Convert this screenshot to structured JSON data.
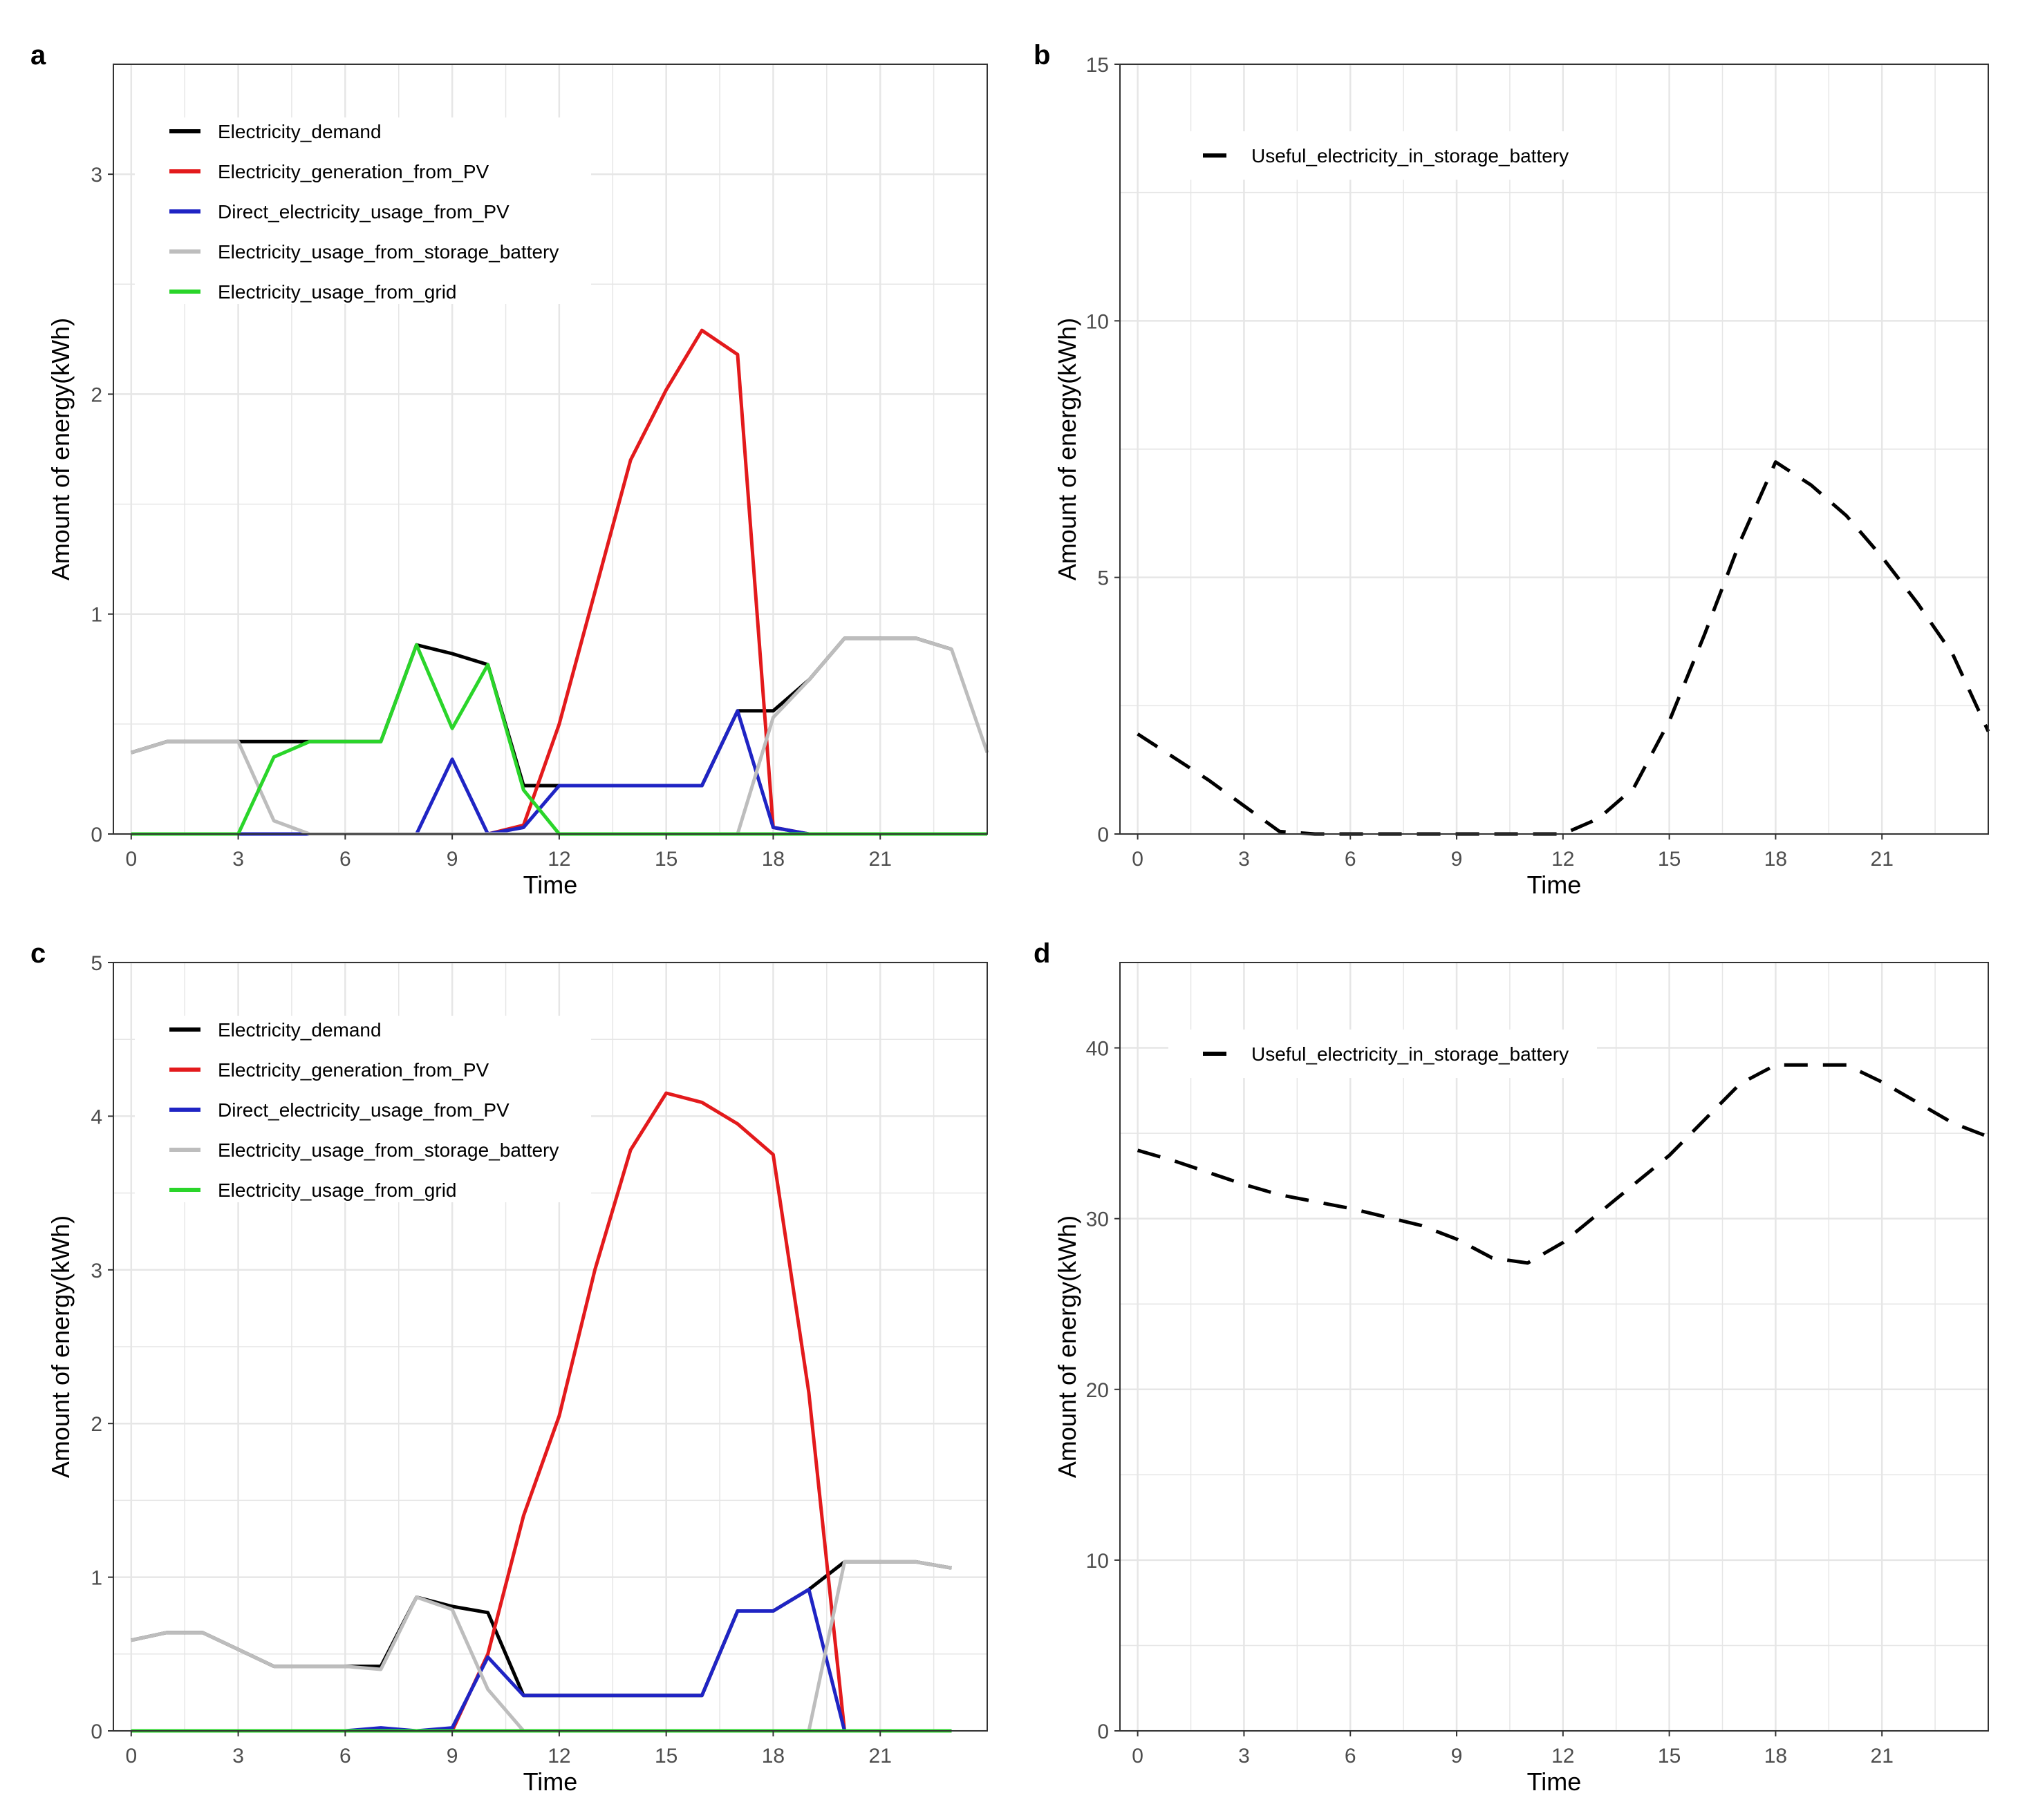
{
  "colors": {
    "demand": "#000000",
    "pv": "#e31a1c",
    "direct_pv": "#1f24c4",
    "battery": "#bdbdbd",
    "grid": "#2ad52a",
    "dashed": "#000000",
    "grid_lines": "#e6e6e6",
    "axis_text": "#4d4d4d"
  },
  "chart_data": [
    {
      "panel": "a",
      "type": "line",
      "xlabel": "Time",
      "ylabel": "Amount of energy(kWh)",
      "xlim": [
        -0.5,
        24.0
      ],
      "ylim": [
        0,
        3.5
      ],
      "xticks": [
        0,
        3,
        6,
        9,
        12,
        15,
        18,
        21
      ],
      "xtick_labels": [
        "0",
        "3",
        "6",
        "9",
        "12",
        "15",
        "18",
        "21"
      ],
      "yticks": [
        0,
        1,
        2,
        3
      ],
      "ytick_labels": [
        "0",
        "1",
        "2",
        "3"
      ],
      "legend_position": "top-left",
      "series": [
        {
          "name": "Electricity_demand",
          "color_key": "demand",
          "dash": false,
          "x": [
            0,
            1,
            2,
            3,
            4,
            5,
            6,
            7,
            8,
            9,
            10,
            11,
            12,
            13,
            14,
            15,
            16,
            17,
            18,
            19,
            20,
            21,
            22,
            23
          ],
          "y": [
            0.37,
            0.42,
            0.42,
            0.42,
            0.42,
            0.42,
            0.42,
            0.42,
            0.86,
            0.82,
            0.77,
            0.22,
            0.22,
            0.22,
            0.22,
            0.22,
            0.22,
            0.56,
            0.56,
            0.7,
            0.89,
            0.89,
            0.89,
            0.84
          ]
        },
        {
          "name": "Electricity_generation_from_PV",
          "color_key": "pv",
          "dash": false,
          "x": [
            0,
            1,
            2,
            3,
            4,
            5,
            6,
            7,
            8,
            9,
            10,
            11,
            12,
            13,
            14,
            15,
            16,
            17,
            18,
            19,
            20,
            21,
            22,
            23
          ],
          "y": [
            0,
            0,
            0,
            0,
            0,
            0,
            0,
            0,
            0,
            0,
            0,
            0.04,
            0.5,
            1.1,
            1.7,
            2.02,
            2.29,
            2.18,
            0.03,
            0,
            0,
            0,
            0,
            0
          ]
        },
        {
          "name": "Direct_electricity_usage_from_PV",
          "color_key": "direct_pv",
          "dash": false,
          "x": [
            0,
            1,
            2,
            3,
            4,
            5,
            6,
            7,
            8,
            9,
            10,
            11,
            12,
            13,
            14,
            15,
            16,
            17,
            18,
            19,
            20,
            21,
            22,
            23
          ],
          "y": [
            0,
            0,
            0,
            0,
            0,
            0,
            0,
            0,
            0,
            0.34,
            0,
            0.03,
            0.22,
            0.22,
            0.22,
            0.22,
            0.22,
            0.56,
            0.03,
            0,
            0,
            0,
            0,
            0
          ]
        },
        {
          "name": "Electricity_usage_from_storage_battery",
          "color_key": "battery",
          "dash": false,
          "x": [
            0,
            1,
            2,
            3,
            4,
            5,
            6,
            7,
            8,
            9,
            10,
            11,
            12,
            13,
            14,
            15,
            16,
            17,
            18,
            19,
            20,
            21,
            22,
            23,
            24
          ],
          "y": [
            0.37,
            0.42,
            0.42,
            0.42,
            0.06,
            0,
            0,
            0,
            0,
            0,
            0,
            0,
            0,
            0,
            0,
            0,
            0,
            0,
            0.53,
            0.7,
            0.89,
            0.89,
            0.89,
            0.84,
            0.37
          ]
        },
        {
          "name": "Electricity_usage_from_grid",
          "color_key": "grid",
          "dash": false,
          "x": [
            0,
            1,
            2,
            3,
            4,
            5,
            6,
            7,
            8,
            9,
            10,
            11,
            12,
            13,
            14,
            15,
            16,
            17,
            18,
            19,
            20,
            21,
            22,
            23,
            24
          ],
          "y": [
            0,
            0,
            0,
            0,
            0.35,
            0.42,
            0.42,
            0.42,
            0.86,
            0.48,
            0.77,
            0.2,
            0,
            0,
            0,
            0,
            0,
            0,
            0,
            0,
            0,
            0,
            0,
            0,
            0
          ]
        }
      ]
    },
    {
      "panel": "b",
      "type": "line",
      "xlabel": "Time",
      "ylabel": "Amount of energy(kWh)",
      "xlim": [
        -0.5,
        24.0
      ],
      "ylim": [
        0,
        15
      ],
      "xticks": [
        0,
        3,
        6,
        9,
        12,
        15,
        18,
        21
      ],
      "xtick_labels": [
        "0",
        "3",
        "6",
        "9",
        "12",
        "15",
        "18",
        "21"
      ],
      "yticks": [
        0,
        5,
        10,
        15
      ],
      "ytick_labels": [
        "0",
        "5",
        "10",
        "15"
      ],
      "legend_position": "top-left",
      "series": [
        {
          "name": "Useful_electricity_in_storage_battery",
          "color_key": "dashed",
          "dash": true,
          "x": [
            0,
            1,
            2,
            3,
            4,
            5,
            6,
            7,
            8,
            9,
            10,
            11,
            12,
            13,
            14,
            15,
            16,
            17,
            18,
            19,
            20,
            21,
            22,
            23,
            24
          ],
          "y": [
            1.95,
            1.5,
            1.05,
            0.55,
            0.05,
            0,
            0,
            0,
            0,
            0,
            0,
            0,
            0,
            0.3,
            0.9,
            2.2,
            3.9,
            5.7,
            7.25,
            6.8,
            6.2,
            5.4,
            4.5,
            3.5,
            2.0
          ]
        }
      ]
    },
    {
      "panel": "c",
      "type": "line",
      "xlabel": "Time",
      "ylabel": "Amount of energy(kWh)",
      "xlim": [
        -0.5,
        24.0
      ],
      "ylim": [
        0,
        5
      ],
      "xticks": [
        0,
        3,
        6,
        9,
        12,
        15,
        18,
        21
      ],
      "xtick_labels": [
        "0",
        "3",
        "6",
        "9",
        "12",
        "15",
        "18",
        "21"
      ],
      "yticks": [
        0,
        1,
        2,
        3,
        4,
        5
      ],
      "ytick_labels": [
        "0",
        "1",
        "2",
        "3",
        "4",
        "5"
      ],
      "legend_position": "top-left",
      "series": [
        {
          "name": "Electricity_demand",
          "color_key": "demand",
          "dash": false,
          "x": [
            0,
            1,
            2,
            3,
            4,
            5,
            6,
            7,
            8,
            9,
            10,
            11,
            12,
            13,
            14,
            15,
            16,
            17,
            18,
            19,
            20,
            21,
            22,
            23
          ],
          "y": [
            0.59,
            0.64,
            0.64,
            0.53,
            0.42,
            0.42,
            0.42,
            0.42,
            0.87,
            0.81,
            0.77,
            0.23,
            0.23,
            0.23,
            0.23,
            0.23,
            0.23,
            0.78,
            0.78,
            0.92,
            1.1,
            1.1,
            1.1,
            1.06
          ]
        },
        {
          "name": "Electricity_generation_from_PV",
          "color_key": "pv",
          "dash": false,
          "x": [
            0,
            1,
            2,
            3,
            4,
            5,
            6,
            7,
            8,
            9,
            10,
            11,
            12,
            13,
            14,
            15,
            16,
            17,
            18,
            19,
            20,
            21,
            22,
            23
          ],
          "y": [
            0,
            0,
            0,
            0,
            0,
            0,
            0,
            0,
            0,
            0,
            0.5,
            1.4,
            2.05,
            3.0,
            3.78,
            4.15,
            4.09,
            3.95,
            3.75,
            2.2,
            0,
            0,
            0,
            0
          ]
        },
        {
          "name": "Direct_electricity_usage_from_PV",
          "color_key": "direct_pv",
          "dash": false,
          "x": [
            0,
            1,
            2,
            3,
            4,
            5,
            6,
            7,
            8,
            9,
            10,
            11,
            12,
            13,
            14,
            15,
            16,
            17,
            18,
            19,
            20,
            21,
            22,
            23
          ],
          "y": [
            0,
            0,
            0,
            0,
            0,
            0,
            0,
            0.02,
            0,
            0.02,
            0.48,
            0.23,
            0.23,
            0.23,
            0.23,
            0.23,
            0.23,
            0.78,
            0.78,
            0.92,
            0,
            0,
            0,
            0
          ]
        },
        {
          "name": "Electricity_usage_from_storage_battery",
          "color_key": "battery",
          "dash": false,
          "x": [
            0,
            1,
            2,
            3,
            4,
            5,
            6,
            7,
            8,
            9,
            10,
            11,
            12,
            13,
            14,
            15,
            16,
            17,
            18,
            19,
            20,
            21,
            22,
            23
          ],
          "y": [
            0.59,
            0.64,
            0.64,
            0.53,
            0.42,
            0.42,
            0.42,
            0.4,
            0.87,
            0.79,
            0.27,
            0,
            0,
            0,
            0,
            0,
            0,
            0,
            0,
            0,
            1.1,
            1.1,
            1.1,
            1.06
          ]
        },
        {
          "name": "Electricity_usage_from_grid",
          "color_key": "grid",
          "dash": false,
          "x": [
            0,
            1,
            2,
            3,
            4,
            5,
            6,
            7,
            8,
            9,
            10,
            11,
            12,
            13,
            14,
            15,
            16,
            17,
            18,
            19,
            20,
            21,
            22,
            23
          ],
          "y": [
            0,
            0,
            0,
            0,
            0,
            0,
            0,
            0,
            0,
            0,
            0,
            0,
            0,
            0,
            0,
            0,
            0,
            0,
            0,
            0,
            0,
            0,
            0,
            0
          ]
        }
      ]
    },
    {
      "panel": "d",
      "type": "line",
      "xlabel": "Time",
      "ylabel": "Amount of energy(kWh)",
      "xlim": [
        -0.5,
        24.0
      ],
      "ylim": [
        0,
        45
      ],
      "xticks": [
        0,
        3,
        6,
        9,
        12,
        15,
        18,
        21
      ],
      "xtick_labels": [
        "0",
        "3",
        "6",
        "9",
        "12",
        "15",
        "18",
        "21"
      ],
      "yticks": [
        0,
        10,
        20,
        30,
        40
      ],
      "ytick_labels": [
        "0",
        "10",
        "20",
        "30",
        "40"
      ],
      "legend_position": "top-left",
      "series": [
        {
          "name": "Useful_electricity_in_storage_battery",
          "color_key": "dashed",
          "dash": true,
          "x": [
            0,
            1,
            2,
            3,
            4,
            5,
            6,
            7,
            8,
            9,
            10,
            11,
            12,
            13,
            14,
            15,
            16,
            17,
            18,
            19,
            20,
            21,
            22,
            23,
            24
          ],
          "y": [
            34.0,
            33.4,
            32.7,
            32.0,
            31.4,
            31.0,
            30.6,
            30.1,
            29.6,
            28.8,
            27.7,
            27.4,
            28.6,
            30.3,
            32.0,
            33.7,
            35.8,
            37.9,
            39.0,
            39.0,
            39.0,
            38.0,
            36.8,
            35.6,
            34.8
          ]
        }
      ]
    }
  ]
}
